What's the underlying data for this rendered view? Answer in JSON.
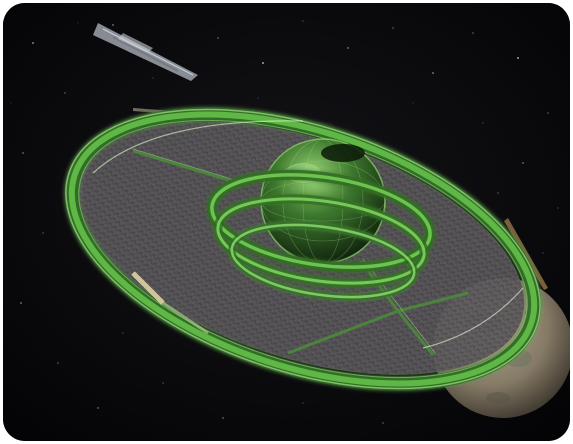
{
  "scene": {
    "subject": "space-station-illustration",
    "colors": {
      "space": "#050508",
      "ring_green": "#5fbf48",
      "ring_highlight": "#b8f59a",
      "deck": "#6e6b6e",
      "moon": "#8a7f6a",
      "sun_flare": "#e8c98a"
    },
    "icons": [
      "station-ring",
      "central-sphere",
      "moon",
      "spacecraft",
      "star-field"
    ]
  }
}
